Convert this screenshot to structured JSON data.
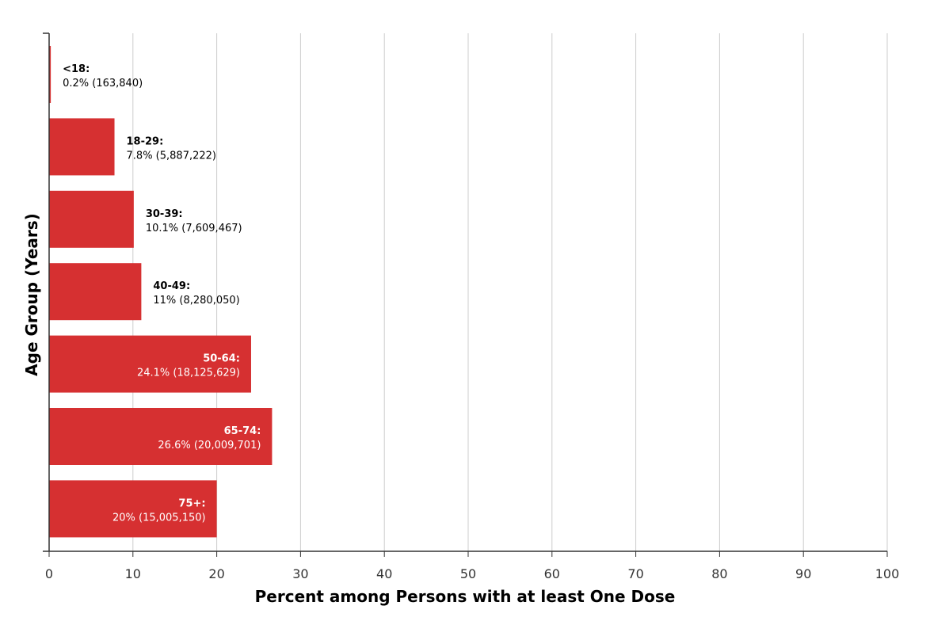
{
  "chart_data": {
    "type": "bar",
    "orientation": "horizontal",
    "title": "",
    "xlabel": "Percent among Persons with at least One Dose",
    "ylabel": "Age Group (Years)",
    "xlim": [
      0,
      100
    ],
    "xticks": [
      0,
      10,
      20,
      30,
      40,
      50,
      60,
      70,
      80,
      90,
      100
    ],
    "grid": "vertical",
    "legend": "none",
    "bar_color": "#d63031",
    "categories": [
      "<18",
      "18-29",
      "30-39",
      "40-49",
      "50-64",
      "65-74",
      "75+"
    ],
    "values": [
      0.2,
      7.8,
      10.1,
      11,
      24.1,
      26.6,
      20
    ],
    "data_labels": [
      {
        "group": "<18:",
        "value": "0.2% (163,840)"
      },
      {
        "group": "18-29:",
        "value": "7.8% (5,887,222)"
      },
      {
        "group": "30-39:",
        "value": "10.1% (7,609,467)"
      },
      {
        "group": "40-49:",
        "value": "11% (8,280,050)"
      },
      {
        "group": "50-64:",
        "value": "24.1% (18,125,629)"
      },
      {
        "group": "65-74:",
        "value": "26.6% (20,009,701)"
      },
      {
        "group": "75+:",
        "value": "20% (15,005,150)"
      }
    ]
  }
}
